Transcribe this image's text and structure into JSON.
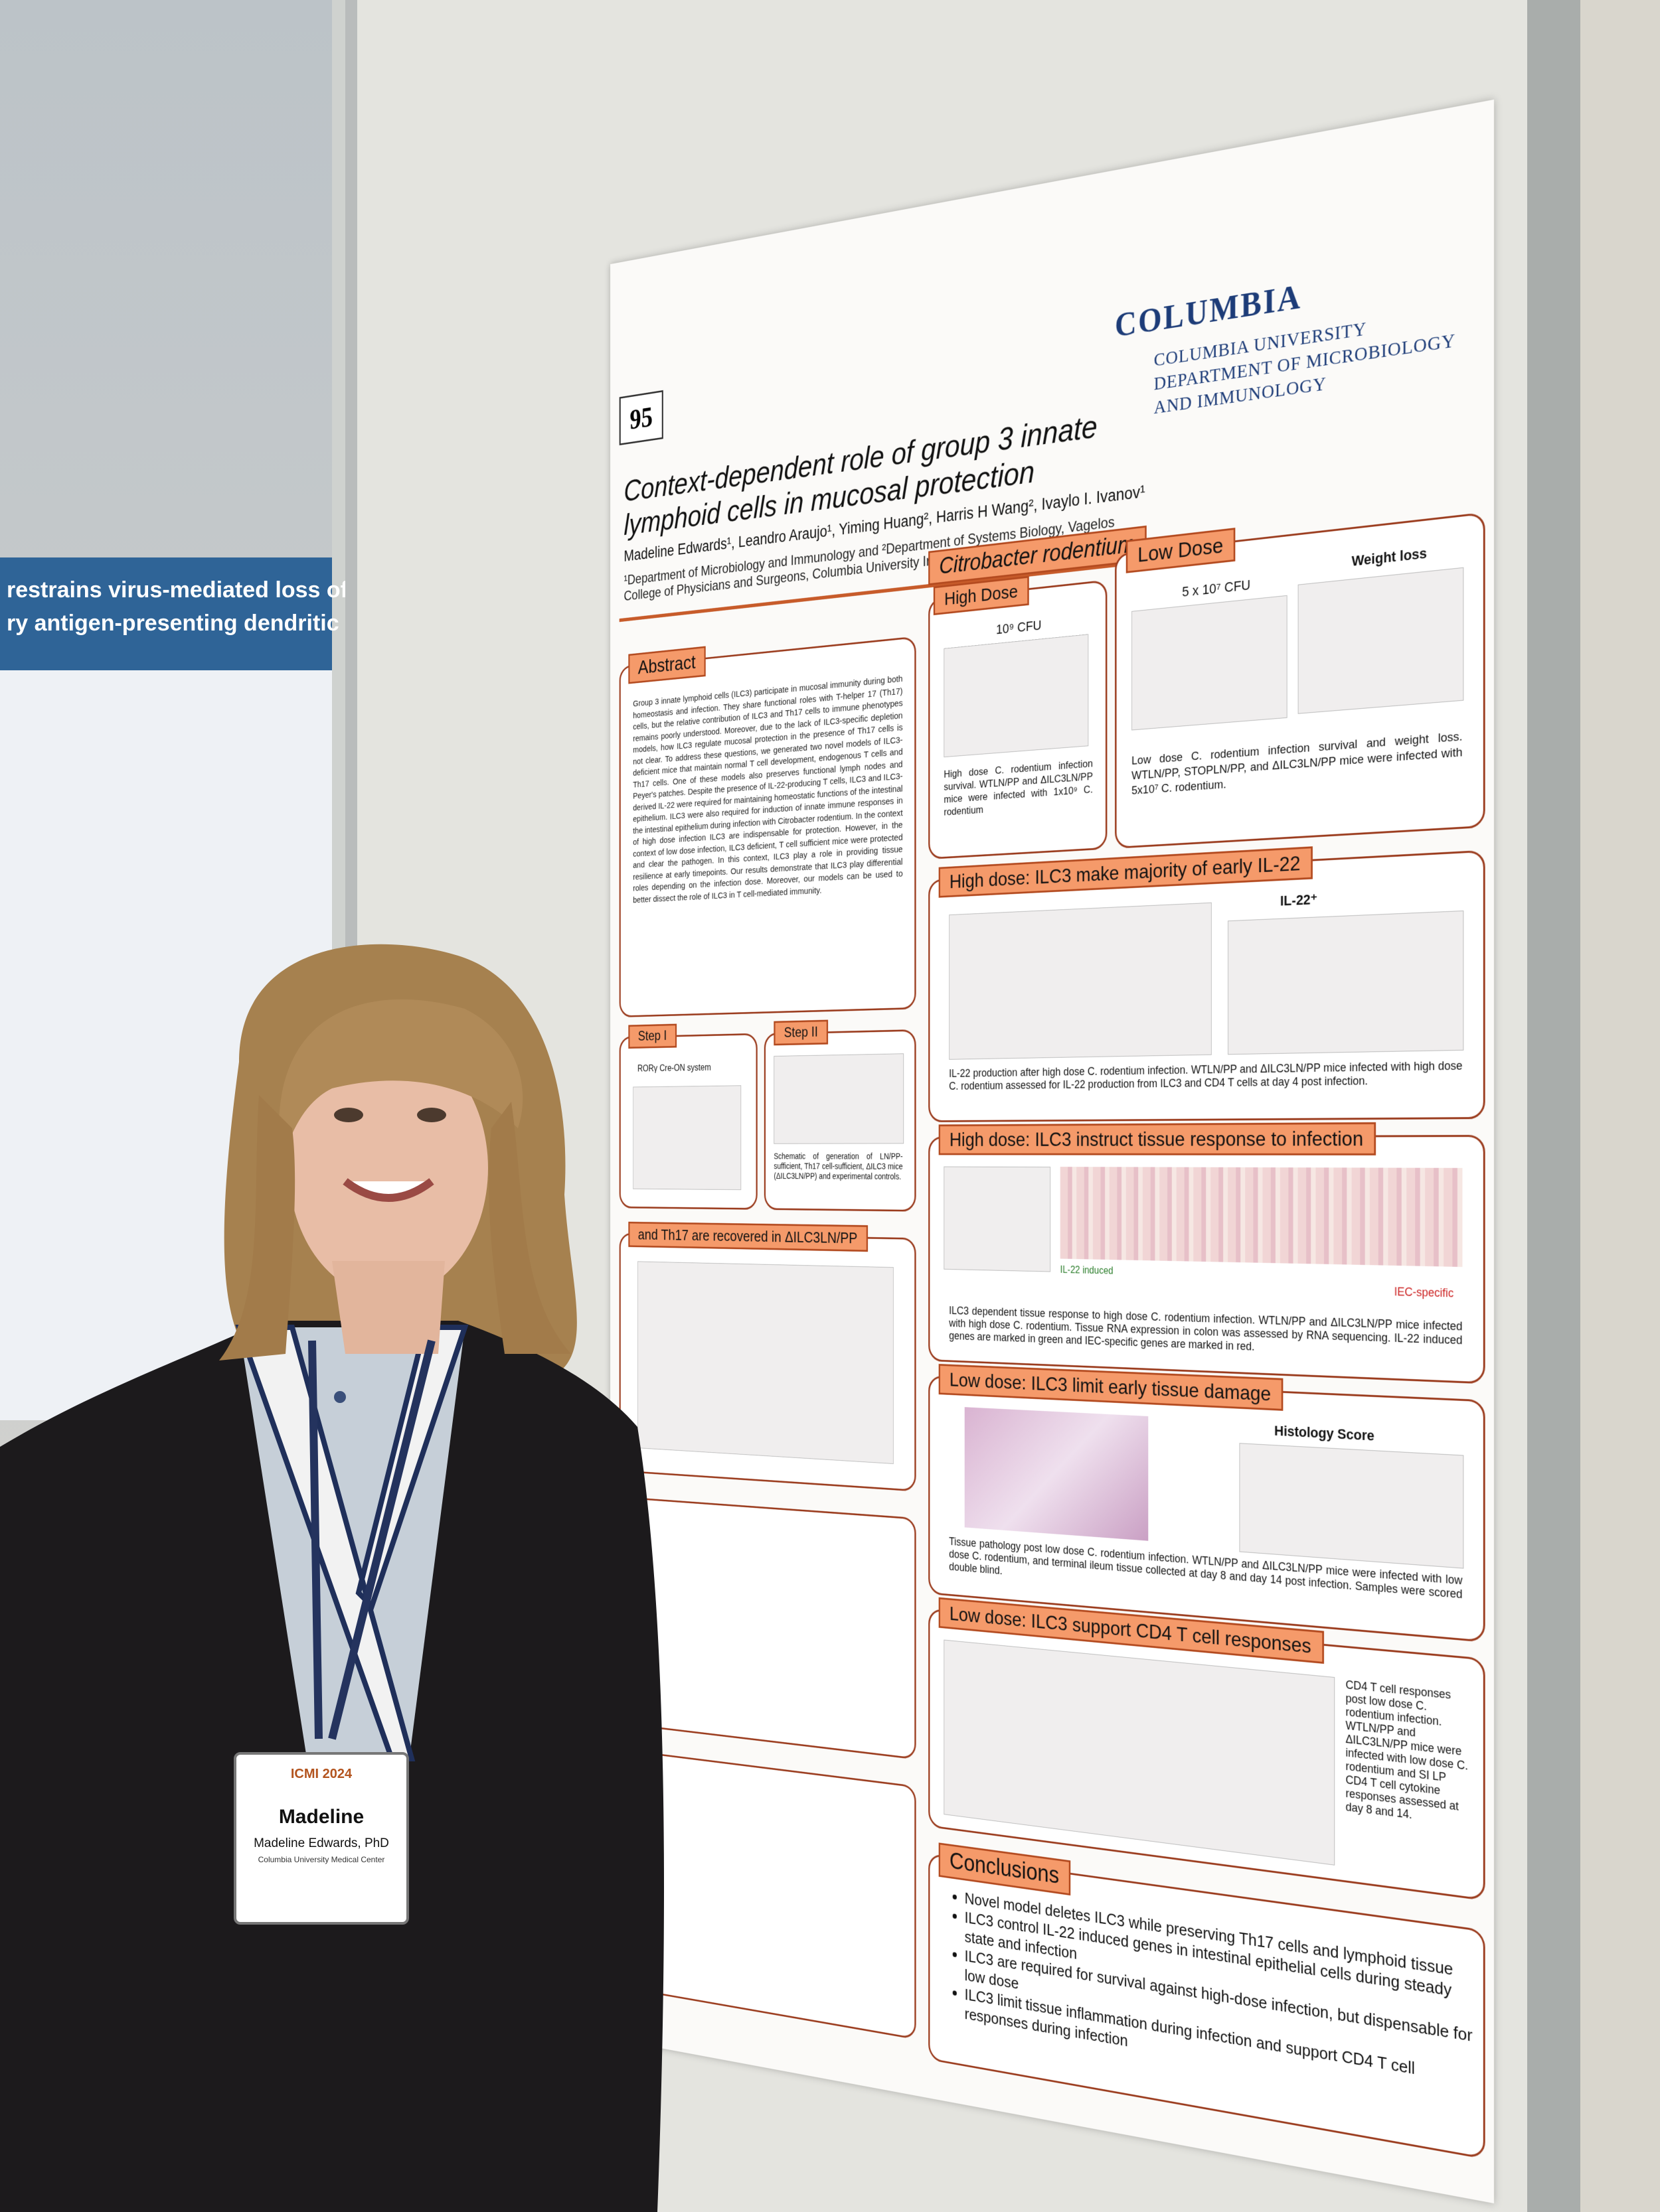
{
  "poster_number": "95",
  "poster": {
    "title": "Context-dependent role of group 3 innate lymphoid cells in mucosal protection",
    "authors": "Madeline Edwards¹, Leandro Araujo¹, Yiming Huang², Harris H Wang², Ivaylo I. Ivanov¹",
    "affiliations": "¹Department of Microbiology and Immunology and ²Department of Systems Biology, Vagelos College of Physicians and Surgeons, Columbia University Irving Medical Center",
    "logo": {
      "wordmark": "COLUMBIA",
      "lines": [
        "COLUMBIA UNIVERSITY",
        "DEPARTMENT OF MICROBIOLOGY",
        "AND IMMUNOLOGY"
      ]
    },
    "abstract": {
      "heading": "Abstract",
      "text": "Group 3 innate lymphoid cells (ILC3) participate in mucosal immunity during both homeostasis and infection. They share functional roles with T-helper 17 (Th17) cells, but the relative contribution of ILC3 and Th17 cells to immune phenotypes remains poorly understood. Moreover, due to the lack of ILC3-specific depletion models, how ILC3 regulate mucosal protection in the presence of Th17 cells is not clear. To address these questions, we generated two novel models of ILC3-deficient mice that maintain normal T cell development, endogenous T cells and Th17 cells. One of these models also preserves functional lymph nodes and Peyer's patches. Despite the presence of IL-22-producing T cells, ILC3 and ILC3- derived IL-22 were required for maintaining homeostatic functions of the intestinal epithelium. ILC3 were also required for induction of innate immune responses in the intestinal epithelium during infection with Citrobacter rodentium. In the context of high dose infection ILC3 are indispensable for protection. However, in the context of low dose infection, ILC3 deficient, T cell sufficient mice were protected and clear the pathogen. In this context, ILC3 play a role in providing tissue resilience at early timepoints. Our results demonstrate that ILC3 play differential roles depending on the infection dose. Moreover, our models can be used to better dissect the role of ILC3 in T cell-mediated immunity."
    },
    "model": {
      "step1": "Step I",
      "step1_label": "RORγ Cre-ON system",
      "step2": "Step II",
      "caption": "Schematic of generation of LN/PP-sufficient, Th17 cell-sufficient, ΔILC3 mice (ΔILC3LN/PP) and experimental controls."
    },
    "th17_heading": "and Th17 are recovered in ΔILC3LN/PP",
    "citrobacter": "Citrobacter rodentium",
    "high_dose": {
      "heading": "High Dose",
      "dose": "10⁹ CFU",
      "caption": "High dose C. rodentium infection survival. WTLN/PP and ΔILC3LN/PP mice were infected with 1x10⁹ C. rodentium"
    },
    "low_dose": {
      "heading": "Low Dose",
      "dose": "5 x 10⁷ CFU",
      "chart_title": "Weight loss",
      "caption": "Low dose C. rodentium infection survival and weight loss. WTLN/PP, STOPLN/PP, and ΔILC3LN/PP mice were infected with 5x10⁷ C. rodentium."
    },
    "il22": {
      "heading": "High dose: ILC3 make majority of early IL-22",
      "chart_title": "IL-22⁺",
      "caption": "IL-22 production after high dose C. rodentium infection. WTLN/PP and ΔILC3LN/PP mice infected with high dose C. rodentium assessed for IL-22 production from ILC3 and CD4 T cells at day 4 post infection."
    },
    "tissue": {
      "heading": "High dose: ILC3 instruct tissue response to infection",
      "label_green": "IL-22 induced",
      "label_red": "IEC-specific",
      "caption": "ILC3 dependent tissue response to high dose C. rodentium infection. WTLN/PP and ΔILC3LN/PP mice infected with high dose C. rodentium. Tissue RNA expression in colon was assessed by RNA sequencing. IL-22 induced genes are marked in green and IEC-specific genes are marked in red."
    },
    "damage": {
      "heading": "Low dose: ILC3 limit early tissue damage",
      "chart_title": "Histology Score",
      "caption": "Tissue pathology post low dose C. rodentium infection. WTLN/PP and ΔILC3LN/PP mice were infected with low dose C. rodentium, and terminal ileum tissue collected at day 8 and day 14 post infection. Samples were scored double blind."
    },
    "cd4": {
      "heading": "Low dose: ILC3 support CD4 T cell responses",
      "caption": "CD4 T cell responses post low dose C. rodentium infection. WTLN/PP and ΔILC3LN/PP mice were infected with low dose C. rodentium and SI LP CD4 T cell cytokine responses assessed at day 8 and 14."
    },
    "conclusions": {
      "heading": "Conclusions",
      "items": [
        "Novel model deletes ILC3 while preserving Th17 cells and lymphoid tissue",
        "ILC3 control IL-22 induced genes in intestinal epithelial cells during steady state and infection",
        "ILC3 are required for survival against high-dose infection, but dispensable for low dose",
        "ILC3 limit tissue inflammation during infection and support CD4 T cell responses during infection"
      ]
    }
  },
  "neighbor_poster": {
    "title_lines": [
      "restrains virus-mediated loss of oral tolerance by",
      "ry antigen-presenting dendritic cells"
    ]
  },
  "badge": {
    "event": "ICMI 2024",
    "first_name": "Madeline",
    "full_name": "Madeline Edwards, PhD",
    "affiliation": "Columbia University Medical Center"
  }
}
